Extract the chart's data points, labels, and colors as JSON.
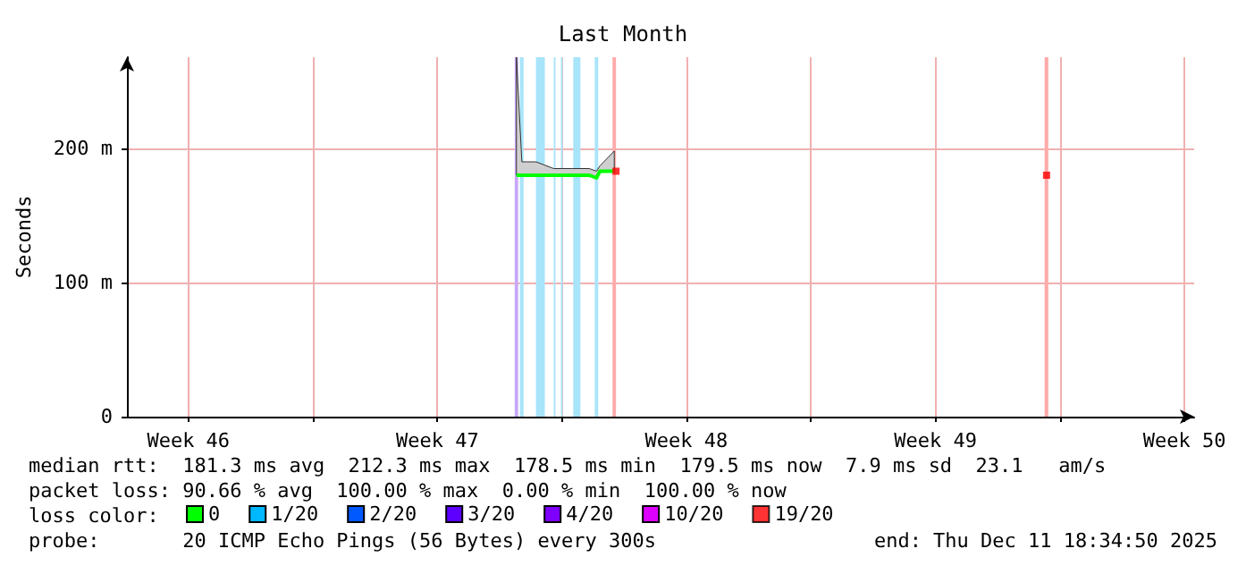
{
  "chart_data": {
    "type": "line",
    "title": "Last Month",
    "ylabel": "Seconds",
    "xlim": [
      "2025-11-11T18:34",
      "2025-12-11T18:34"
    ],
    "ylim": [
      0,
      268
    ],
    "xticks": [
      {
        "value": "2025-11-13T12:00",
        "label": "Week 46"
      },
      {
        "value": "2025-11-17T00:00",
        "label": null
      },
      {
        "value": "2025-11-20T12:00",
        "label": "Week 47"
      },
      {
        "value": "2025-11-24T00:00",
        "label": null
      },
      {
        "value": "2025-11-27T12:00",
        "label": "Week 48"
      },
      {
        "value": "2025-12-01T00:00",
        "label": null
      },
      {
        "value": "2025-12-04T12:00",
        "label": "Week 49"
      },
      {
        "value": "2025-12-08T00:00",
        "label": null
      },
      {
        "value": "2025-12-11T12:00",
        "label": "Week 50"
      }
    ],
    "yticks": [
      {
        "value": 0,
        "label": "0"
      },
      {
        "value": 100,
        "label": "100 m"
      },
      {
        "value": 200,
        "label": "200 m"
      }
    ],
    "grid": true,
    "legend": "bottom",
    "legend_title": "loss color:",
    "series": [
      {
        "name": "0",
        "color": "#00ff00",
        "x": [
          "2025-11-22T17:20",
          "2025-11-22T21:00",
          "2025-11-23T06:30",
          "2025-11-23T18:30",
          "2025-11-24T06:30",
          "2025-11-24T18:30",
          "2025-11-24T23:20",
          "2025-11-25T01:40",
          "2025-11-25T11:20"
        ],
        "values": [
          180,
          180,
          180,
          180,
          180,
          180,
          178,
          183,
          183
        ],
        "lower": [
          180,
          180,
          180,
          180,
          180,
          180,
          178,
          183,
          183
        ],
        "upper": [
          268,
          190,
          190,
          185,
          185,
          185,
          183,
          187,
          198
        ]
      },
      {
        "name": "1/20",
        "color": "#00b8ff",
        "values": [
          null
        ]
      },
      {
        "name": "2/20",
        "color": "#0059ff",
        "values": [
          null
        ]
      },
      {
        "name": "3/20",
        "color": "#5e00ff",
        "values": [
          null
        ]
      },
      {
        "name": "4/20",
        "color": "#7e00ff",
        "values": [
          null
        ]
      },
      {
        "name": "10/20",
        "color": "#dd00ff",
        "values": [
          null
        ]
      },
      {
        "name": "19/20",
        "color": "#ff0000",
        "type": "scatter",
        "marker": "square",
        "x": [
          "2025-11-25T12:30",
          "2025-12-07T15:00"
        ],
        "values": [
          183,
          180
        ]
      }
    ],
    "bands": [
      {
        "axis": "x",
        "from": "2025-11-22T16:10",
        "to": "2025-11-22T18:30",
        "color": "#c8a8f8"
      },
      {
        "axis": "x",
        "from": "2025-11-22T19:40",
        "to": "2025-11-22T22:10",
        "color": "#a8e4fa"
      },
      {
        "axis": "x",
        "from": "2025-11-23T06:30",
        "to": "2025-11-23T12:30",
        "color": "#a8e4fa"
      },
      {
        "axis": "x",
        "from": "2025-11-23T18:30",
        "to": "2025-11-23T19:40",
        "color": "#a8e4fa"
      },
      {
        "axis": "x",
        "from": "2025-11-23T23:20",
        "to": "2025-11-24T00:30",
        "color": "#a8e4fa"
      },
      {
        "axis": "x",
        "from": "2025-11-24T07:40",
        "to": "2025-11-24T12:30",
        "color": "#a8e4fa"
      },
      {
        "axis": "x",
        "from": "2025-11-24T22:10",
        "to": "2025-11-25T00:30",
        "color": "#a8e4fa"
      },
      {
        "axis": "x",
        "from": "2025-11-25T10:10",
        "to": "2025-11-25T12:30",
        "color": "#ffaaaa"
      },
      {
        "axis": "x",
        "from": "2025-12-07T13:40",
        "to": "2025-12-07T16:10",
        "color": "#ffaaaa"
      }
    ],
    "annotations": [
      "median rtt:  181.3 ms avg  212.3 ms max  178.5 ms min  179.5 ms now  7.9 ms sd  23.1   am/s",
      "packet loss: 90.66 % avg  100.00 % max  0.00 % min  100.00 % now",
      "probe:       20 ICMP Echo Pings (56 Bytes) every 300s",
      "end: Thu Dec 11 18:34:50 2025"
    ]
  }
}
